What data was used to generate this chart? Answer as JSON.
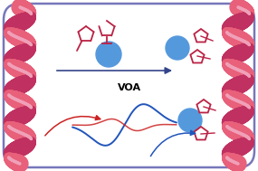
{
  "bg_color": "#ffffff",
  "border_color": "#7777bb",
  "helix_color_light": "#e8607a",
  "helix_color_dark": "#c03060",
  "arrow_main_color": "#33448a",
  "arrow_red_color": "#cc2222",
  "arrow_blue_color": "#2255bb",
  "circle_color": "#5599dd",
  "pentagon_color": "#bb2244",
  "voa_label": "VOA",
  "voa_fontsize": 8
}
